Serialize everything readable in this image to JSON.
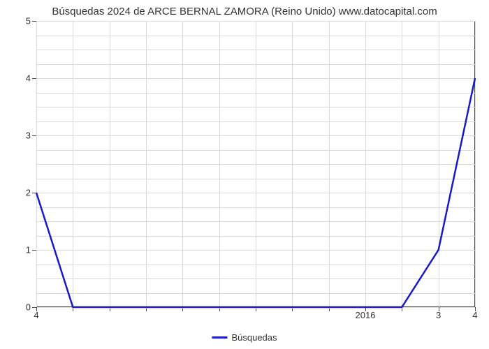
{
  "chart": {
    "type": "line",
    "title": "Búsquedas 2024 de ARCE BERNAL ZAMORA (Reino Unido) www.datocapital.com",
    "title_fontsize": 15,
    "background_color": "#ffffff",
    "grid_color": "#d9d9d9",
    "axis_color": "#4d4d4d",
    "text_color": "#333333",
    "legend": {
      "label": "Búsquedas",
      "color": "#1919c6",
      "position": "bottom-center"
    },
    "y": {
      "min": 0,
      "max": 5,
      "label_fontsize": 13,
      "major_ticks": [
        0,
        1,
        2,
        3,
        4,
        5
      ],
      "major_labels": [
        "0",
        "1",
        "2",
        "3",
        "4",
        "5"
      ],
      "minor_ticks": [
        0.25,
        0.5,
        0.75,
        1.25,
        1.5,
        1.75,
        2.25,
        2.5,
        2.75,
        3.25,
        3.5,
        3.75,
        4.25,
        4.5,
        4.75
      ]
    },
    "x": {
      "min": 0,
      "max": 12,
      "label_fontsize": 13,
      "major_ticks": [
        0,
        9,
        11,
        12
      ],
      "major_labels": [
        "4",
        "2016",
        "3",
        "4"
      ],
      "minor_ticks": [
        1,
        2,
        3,
        4,
        5,
        6,
        7,
        8,
        10
      ]
    },
    "series": {
      "color": "#1919c6",
      "line_width": 2.5,
      "points": [
        [
          0,
          2
        ],
        [
          1,
          0
        ],
        [
          10,
          0
        ],
        [
          11,
          1
        ],
        [
          12,
          4
        ]
      ]
    }
  }
}
